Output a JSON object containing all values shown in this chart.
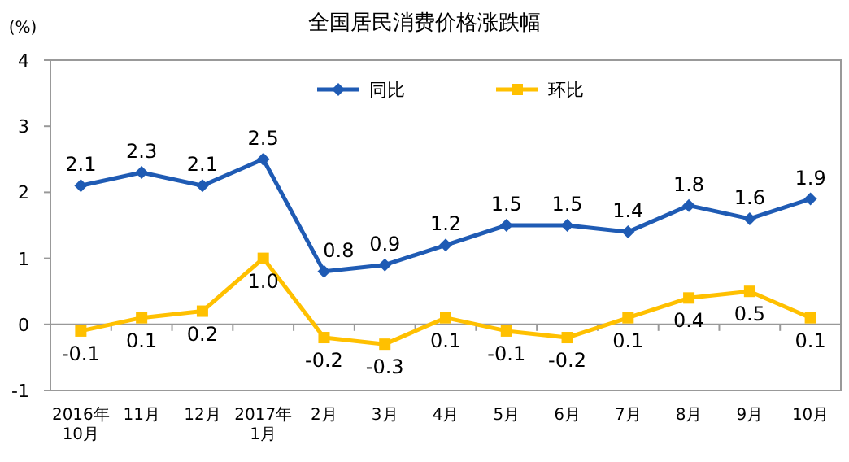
{
  "chart_data": {
    "type": "line",
    "title": "全国居民消费价格涨跌幅",
    "ylabel": "(%)",
    "categories": [
      "2016年\n10月",
      "11月",
      "12月",
      "2017年\n1月",
      "2月",
      "3月",
      "4月",
      "5月",
      "6月",
      "7月",
      "8月",
      "9月",
      "10月"
    ],
    "series": [
      {
        "name": "同比",
        "color": "#1f5bb4",
        "marker": "diamond",
        "values": [
          2.1,
          2.3,
          2.1,
          2.5,
          0.8,
          0.9,
          1.2,
          1.5,
          1.5,
          1.4,
          1.8,
          1.6,
          1.9
        ],
        "value_labels": [
          "2.1",
          "2.3",
          "2.1",
          "2.5",
          "0.8",
          "0.9",
          "1.2",
          "1.5",
          "1.5",
          "1.4",
          "1.8",
          "1.6",
          "1.9"
        ]
      },
      {
        "name": "环比",
        "color": "#ffc000",
        "marker": "square",
        "values": [
          -0.1,
          0.1,
          0.2,
          1.0,
          -0.2,
          -0.3,
          0.1,
          -0.1,
          -0.2,
          0.1,
          0.4,
          0.5,
          0.1
        ],
        "value_labels": [
          "-0.1",
          "0.1",
          "0.2",
          "1.0",
          "-0.2",
          "-0.3",
          "0.1",
          "-0.1",
          "-0.2",
          "0.1",
          "0.4",
          "0.5",
          "0.1"
        ]
      }
    ],
    "ylim": [
      -1,
      4
    ],
    "yticks": [
      -1,
      0,
      1,
      2,
      3,
      4
    ],
    "legend": "top"
  }
}
